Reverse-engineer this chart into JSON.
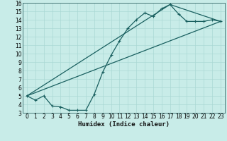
{
  "xlabel": "Humidex (Indice chaleur)",
  "bg_color": "#c8ece8",
  "grid_color": "#aad8d4",
  "line_color": "#1a6060",
  "xlim": [
    -0.5,
    23.5
  ],
  "ylim": [
    3,
    16
  ],
  "xticks": [
    0,
    1,
    2,
    3,
    4,
    5,
    6,
    7,
    8,
    9,
    10,
    11,
    12,
    13,
    14,
    15,
    16,
    17,
    18,
    19,
    20,
    21,
    22,
    23
  ],
  "yticks": [
    3,
    4,
    5,
    6,
    7,
    8,
    9,
    10,
    11,
    12,
    13,
    14,
    15,
    16
  ],
  "curve1_x": [
    0,
    1,
    2,
    3,
    4,
    5,
    6,
    7,
    8,
    9,
    10,
    11,
    12,
    13,
    14,
    15,
    16,
    17,
    18,
    19,
    20,
    21,
    22,
    23
  ],
  "curve1_y": [
    5.0,
    4.5,
    5.0,
    3.8,
    3.7,
    3.3,
    3.3,
    3.3,
    5.2,
    7.8,
    9.8,
    11.5,
    13.0,
    14.0,
    14.8,
    14.4,
    15.3,
    15.8,
    14.7,
    13.8,
    13.8,
    13.8,
    14.0,
    13.8
  ],
  "curve2_x": [
    0,
    23
  ],
  "curve2_y": [
    5.0,
    13.8
  ],
  "curve3_x": [
    0,
    17,
    23
  ],
  "curve3_y": [
    5.0,
    15.8,
    13.8
  ],
  "tick_fontsize": 5.5,
  "xlabel_fontsize": 6.5
}
